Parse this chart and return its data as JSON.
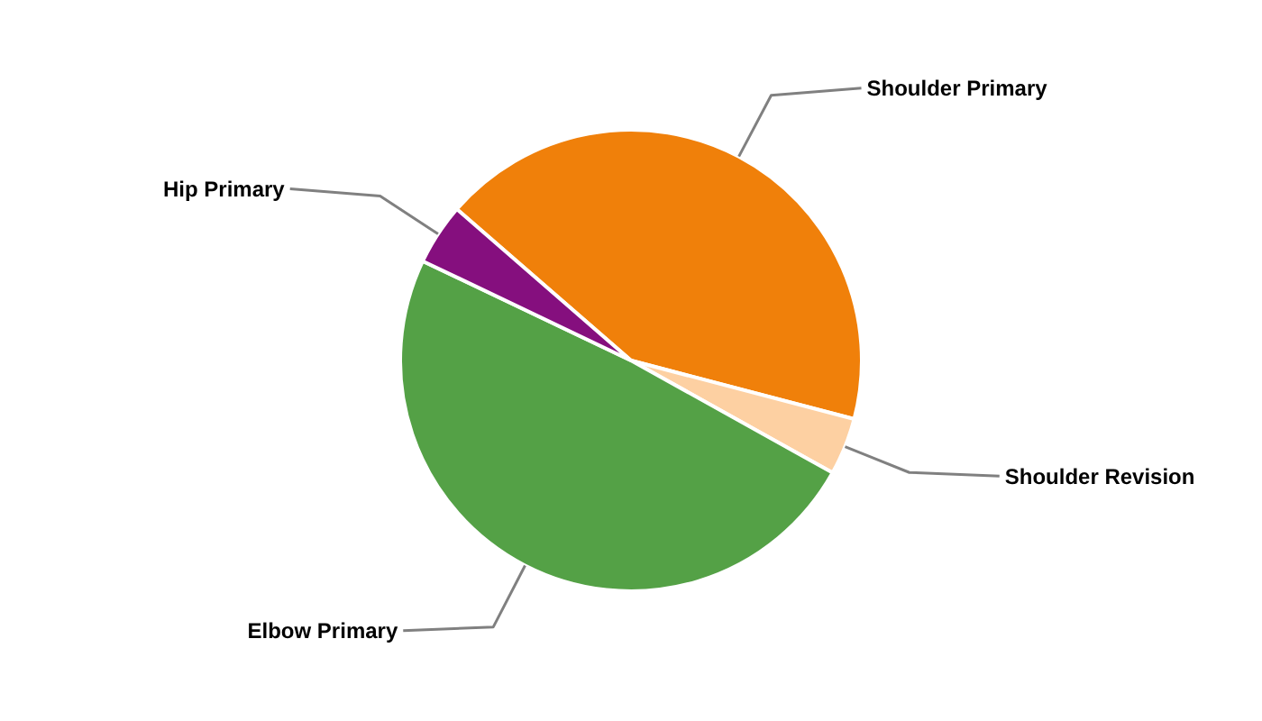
{
  "chart_data": {
    "type": "pie",
    "categories": [
      "Shoulder Primary",
      "Shoulder Revision",
      "Elbow Primary",
      "Hip Primary"
    ],
    "values": [
      42.7,
      4,
      49,
      4.3
    ],
    "colors": [
      "#f0800a",
      "#fdd0a2",
      "#54a146",
      "#850f7e"
    ]
  }
}
